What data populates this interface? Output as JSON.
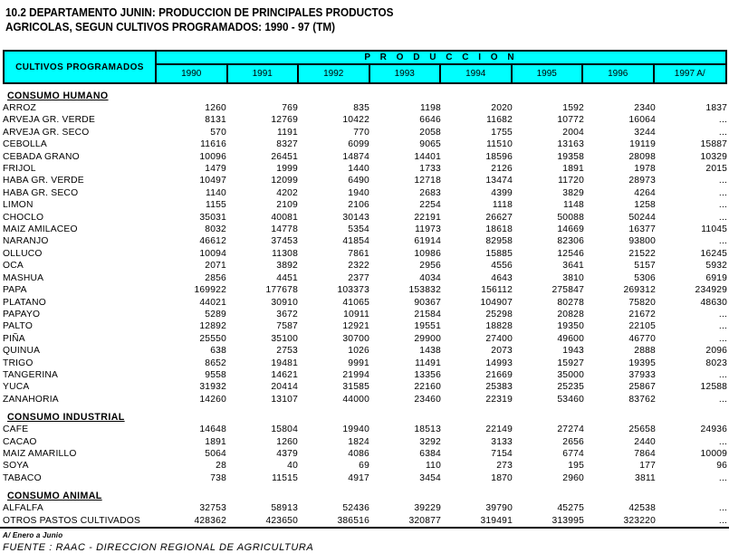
{
  "page": {
    "title_line1": "10.2 DEPARTAMENTO JUNIN: PRODUCCION DE PRINCIPALES PRODUCTOS",
    "title_line2": "AGRICOLAS, SEGUN CULTIVOS PROGRAMADOS: 1990 - 97  (TM)",
    "footnote": "A/ Enero a Junio",
    "source": "FUENTE :  RAAC - DIRECCION REGIONAL DE AGRICULTURA"
  },
  "colors": {
    "header_bg": "#00ffff",
    "border": "#000000",
    "text": "#000000",
    "page_bg": "#ffffff"
  },
  "table": {
    "corner_header": "CULTIVOS PROGRAMADOS",
    "group_header": "P R O D U C C I O N",
    "years": [
      "1990",
      "1991",
      "1992",
      "1993",
      "1994",
      "1995",
      "1996",
      "1997 A/"
    ],
    "missing_marker": "...",
    "sections": [
      {
        "name": "CONSUMO HUMANO",
        "rows": [
          {
            "label": "ARROZ",
            "values": [
              1260,
              769,
              835,
              1198,
              2020,
              1592,
              2340,
              1837
            ]
          },
          {
            "label": "ARVEJA GR. VERDE",
            "values": [
              8131,
              12769,
              10422,
              6646,
              11682,
              10772,
              16064,
              "..."
            ]
          },
          {
            "label": "ARVEJA GR. SECO",
            "values": [
              570,
              1191,
              770,
              2058,
              1755,
              2004,
              3244,
              "..."
            ]
          },
          {
            "label": "CEBOLLA",
            "values": [
              11616,
              8327,
              6099,
              9065,
              11510,
              13163,
              19119,
              15887
            ]
          },
          {
            "label": "CEBADA GRANO",
            "values": [
              10096,
              26451,
              14874,
              14401,
              18596,
              19358,
              28098,
              10329
            ]
          },
          {
            "label": "FRIJOL",
            "values": [
              1479,
              1999,
              1440,
              1733,
              2126,
              1891,
              1978,
              2015
            ]
          },
          {
            "label": "HABA GR. VERDE",
            "values": [
              10497,
              12099,
              6490,
              12718,
              13474,
              11720,
              28973,
              "..."
            ]
          },
          {
            "label": "HABA GR. SECO",
            "values": [
              1140,
              4202,
              1940,
              2683,
              4399,
              3829,
              4264,
              "..."
            ]
          },
          {
            "label": "LIMON",
            "values": [
              1155,
              2109,
              2106,
              2254,
              1118,
              1148,
              1258,
              "..."
            ]
          },
          {
            "label": "CHOCLO",
            "values": [
              35031,
              40081,
              30143,
              22191,
              26627,
              50088,
              50244,
              "..."
            ]
          },
          {
            "label": "MAIZ AMILACEO",
            "values": [
              8032,
              14778,
              5354,
              11973,
              18618,
              14669,
              16377,
              11045
            ]
          },
          {
            "label": "NARANJO",
            "values": [
              46612,
              37453,
              41854,
              61914,
              82958,
              82306,
              93800,
              "..."
            ]
          },
          {
            "label": "OLLUCO",
            "values": [
              10094,
              11308,
              7861,
              10986,
              15885,
              12546,
              21522,
              16245
            ]
          },
          {
            "label": "OCA",
            "values": [
              2071,
              3892,
              2322,
              2956,
              4556,
              3641,
              5157,
              5932
            ]
          },
          {
            "label": "MASHUA",
            "values": [
              2856,
              4451,
              2377,
              4034,
              4643,
              3810,
              5306,
              6919
            ]
          },
          {
            "label": "PAPA",
            "values": [
              169922,
              177678,
              103373,
              153832,
              156112,
              275847,
              269312,
              234929
            ]
          },
          {
            "label": "PLATANO",
            "values": [
              44021,
              30910,
              41065,
              90367,
              104907,
              80278,
              75820,
              48630
            ]
          },
          {
            "label": "PAPAYO",
            "values": [
              5289,
              3672,
              10911,
              21584,
              25298,
              20828,
              21672,
              "..."
            ]
          },
          {
            "label": "PALTO",
            "values": [
              12892,
              7587,
              12921,
              19551,
              18828,
              19350,
              22105,
              "..."
            ]
          },
          {
            "label": "PIÑA",
            "values": [
              25550,
              35100,
              30700,
              29900,
              27400,
              49600,
              46770,
              "..."
            ]
          },
          {
            "label": "QUINUA",
            "values": [
              638,
              2753,
              1026,
              1438,
              2073,
              1943,
              2888,
              2096
            ]
          },
          {
            "label": "TRIGO",
            "values": [
              8652,
              19481,
              9991,
              11491,
              14993,
              15927,
              19395,
              8023
            ]
          },
          {
            "label": "TANGERINA",
            "values": [
              9558,
              14621,
              21994,
              13356,
              21669,
              35000,
              37933,
              "..."
            ]
          },
          {
            "label": "YUCA",
            "values": [
              31932,
              20414,
              31585,
              22160,
              25383,
              25235,
              25867,
              12588
            ]
          },
          {
            "label": "ZANAHORIA",
            "values": [
              14260,
              13107,
              44000,
              23460,
              22319,
              53460,
              83762,
              "..."
            ]
          }
        ]
      },
      {
        "name": "CONSUMO INDUSTRIAL",
        "rows": [
          {
            "label": "CAFE",
            "values": [
              14648,
              15804,
              19940,
              18513,
              22149,
              27274,
              25658,
              24936
            ]
          },
          {
            "label": "CACAO",
            "values": [
              1891,
              1260,
              1824,
              3292,
              3133,
              2656,
              2440,
              "..."
            ]
          },
          {
            "label": "MAIZ AMARILLO",
            "values": [
              5064,
              4379,
              4086,
              6384,
              7154,
              6774,
              7864,
              10009
            ]
          },
          {
            "label": "SOYA",
            "values": [
              28,
              40,
              69,
              110,
              273,
              195,
              177,
              96
            ]
          },
          {
            "label": "TABACO",
            "values": [
              738,
              11515,
              4917,
              3454,
              1870,
              2960,
              3811,
              "..."
            ]
          }
        ]
      },
      {
        "name": "CONSUMO ANIMAL",
        "rows": [
          {
            "label": "ALFALFA",
            "values": [
              32753,
              58913,
              52436,
              39229,
              39790,
              45275,
              42538,
              "..."
            ]
          },
          {
            "label": "OTROS PASTOS CULTIVADOS",
            "values": [
              428362,
              423650,
              386516,
              320877,
              319491,
              313995,
              323220,
              "..."
            ]
          }
        ]
      }
    ]
  }
}
